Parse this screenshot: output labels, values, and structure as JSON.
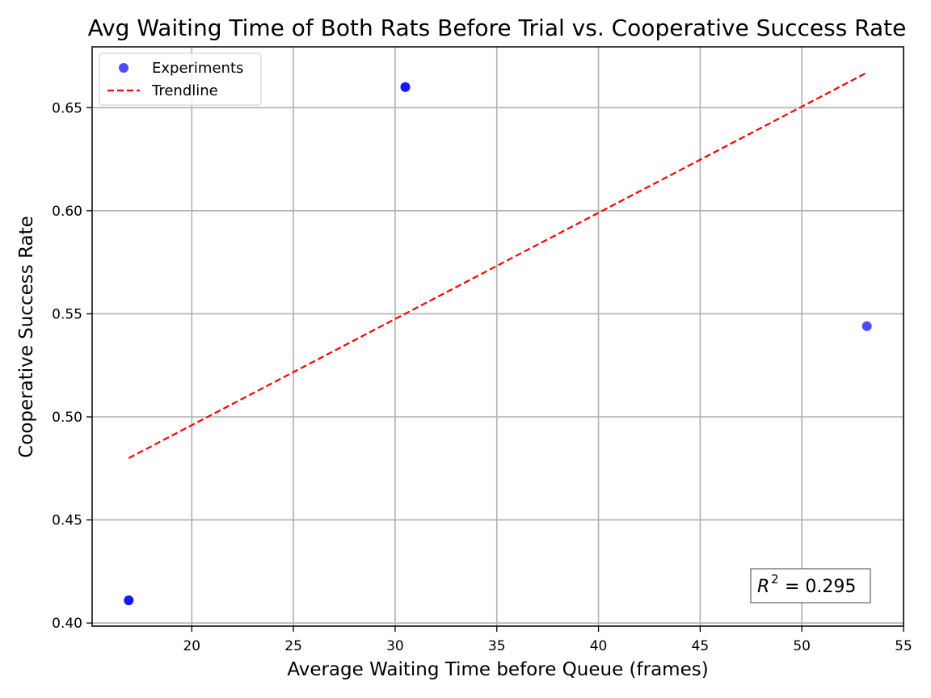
{
  "chart_data": {
    "type": "scatter",
    "title": "Avg Waiting Time of Both Rats Before Trial vs. Cooperative Success Rate",
    "xlabel": "Average Waiting Time before Queue (frames)",
    "ylabel": "Cooperative Success Rate",
    "xlim": [
      15.1,
      55.0
    ],
    "ylim": [
      0.3985,
      0.6795
    ],
    "xticks": [
      20,
      25,
      30,
      35,
      40,
      45,
      50,
      55
    ],
    "xtick_labels": [
      "20",
      "25",
      "30",
      "35",
      "40",
      "45",
      "50",
      "55"
    ],
    "yticks": [
      0.4,
      0.45,
      0.5,
      0.55,
      0.6,
      0.65
    ],
    "ytick_labels": [
      "0.40",
      "0.45",
      "0.50",
      "0.55",
      "0.60",
      "0.65"
    ],
    "grid": true,
    "legend_position": "top-left",
    "series": [
      {
        "name": "Experiments",
        "kind": "scatter",
        "color": "#0000ff",
        "points": [
          {
            "x": 16.9,
            "y": 0.411
          },
          {
            "x": 16.9,
            "y": 0.411
          },
          {
            "x": 30.5,
            "y": 0.66
          },
          {
            "x": 30.5,
            "y": 0.66
          },
          {
            "x": 53.2,
            "y": 0.544
          }
        ]
      },
      {
        "name": "Trendline",
        "kind": "line",
        "style": "dashed",
        "color": "#ff0000",
        "points": [
          {
            "x": 16.9,
            "y": 0.48
          },
          {
            "x": 53.2,
            "y": 0.667
          }
        ]
      }
    ],
    "annotation": {
      "r2_symbol": "R",
      "r2_exp": "2",
      "r2_value": " = 0.295"
    }
  }
}
